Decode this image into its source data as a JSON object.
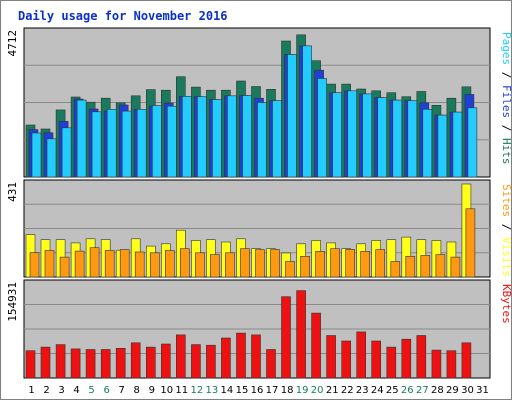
{
  "chart_data": {
    "type": "bar",
    "title": "Daily usage for November 2016",
    "categories": [
      "1",
      "2",
      "3",
      "4",
      "5",
      "6",
      "7",
      "8",
      "9",
      "10",
      "11",
      "12",
      "13",
      "14",
      "15",
      "16",
      "17",
      "18",
      "19",
      "20",
      "21",
      "22",
      "23",
      "24",
      "25",
      "26",
      "27",
      "28",
      "29",
      "30",
      "31"
    ],
    "weekend_days": [
      "5",
      "6",
      "12",
      "13",
      "19",
      "20",
      "26",
      "27"
    ],
    "panels": [
      {
        "id": "top",
        "max_label": "4712",
        "ylim": [
          0,
          4712
        ],
        "ylabel": [
          "Pages",
          "Files",
          "Hits"
        ],
        "series": [
          {
            "name": "Hits",
            "color": "#1a7a5e",
            "values": [
              1690,
              1560,
              2180,
              2600,
              2430,
              2560,
              2410,
              2640,
              2840,
              2820,
              3260,
              2920,
              2820,
              2820,
              3120,
              2940,
              2850,
              4420,
              4620,
              3780,
              3020,
              3020,
              2860,
              2800,
              2740,
              2610,
              2780,
              2330,
              2560,
              2930,
              0
            ]
          },
          {
            "name": "Files",
            "color": "#1f3fd8",
            "values": [
              1540,
              1440,
              1810,
              2530,
              2210,
              2140,
              2340,
              2200,
              2300,
              2400,
              2620,
              2610,
              2520,
              2640,
              2650,
              2560,
              2480,
              3980,
              4260,
              3470,
              2740,
              2800,
              2700,
              2580,
              2500,
              2480,
              2410,
              2010,
              2110,
              2680,
              0
            ]
          },
          {
            "name": "Pages",
            "color": "#22ccff",
            "values": [
              1430,
              1240,
              1600,
              2500,
              2120,
              2200,
              2140,
              2200,
              2320,
              2300,
              2620,
              2610,
              2520,
              2640,
              2650,
              2420,
              2480,
              3980,
              4260,
              3200,
              2740,
              2800,
              2700,
              2580,
              2500,
              2480,
              2200,
              2010,
              2110,
              2250,
              0
            ]
          }
        ]
      },
      {
        "id": "mid",
        "max_label": "431",
        "ylim": [
          0,
          431
        ],
        "ylabel": [
          "Sites",
          "Visits"
        ],
        "series": [
          {
            "name": "Visits",
            "color": "#ffff1a",
            "values": [
              196,
              173,
              173,
              158,
              177,
              173,
              124,
              177,
              143,
              154,
              217,
              169,
              173,
              162,
              177,
              131,
              131,
              111,
              154,
              169,
              158,
              131,
              154,
              169,
              173,
              185,
              173,
              169,
              162,
              431,
              0
            ]
          },
          {
            "name": "Sites",
            "color": "#ff9911",
            "values": [
              113,
              123,
              92,
              120,
              136,
              123,
              127,
              116,
              112,
              123,
              131,
              112,
              104,
              112,
              131,
              127,
              127,
              72,
              96,
              119,
              131,
              128,
              119,
              127,
              72,
              96,
              100,
              104,
              92,
              316,
              0
            ]
          }
        ]
      },
      {
        "id": "bottom",
        "max_label": "154931",
        "ylim": [
          0,
          154931
        ],
        "ylabel": [
          "KBytes"
        ],
        "series": [
          {
            "name": "KBytes",
            "color": "#ee1111",
            "values": [
              45000,
              51000,
              55000,
              48000,
              47000,
              47000,
              49000,
              58000,
              51000,
              56000,
              71000,
              55000,
              54000,
              66000,
              74000,
              71000,
              47000,
              134000,
              144000,
              107000,
              70000,
              61000,
              76000,
              61000,
              51000,
              64000,
              70000,
              46000,
              45000,
              58000,
              0
            ]
          }
        ]
      }
    ]
  }
}
